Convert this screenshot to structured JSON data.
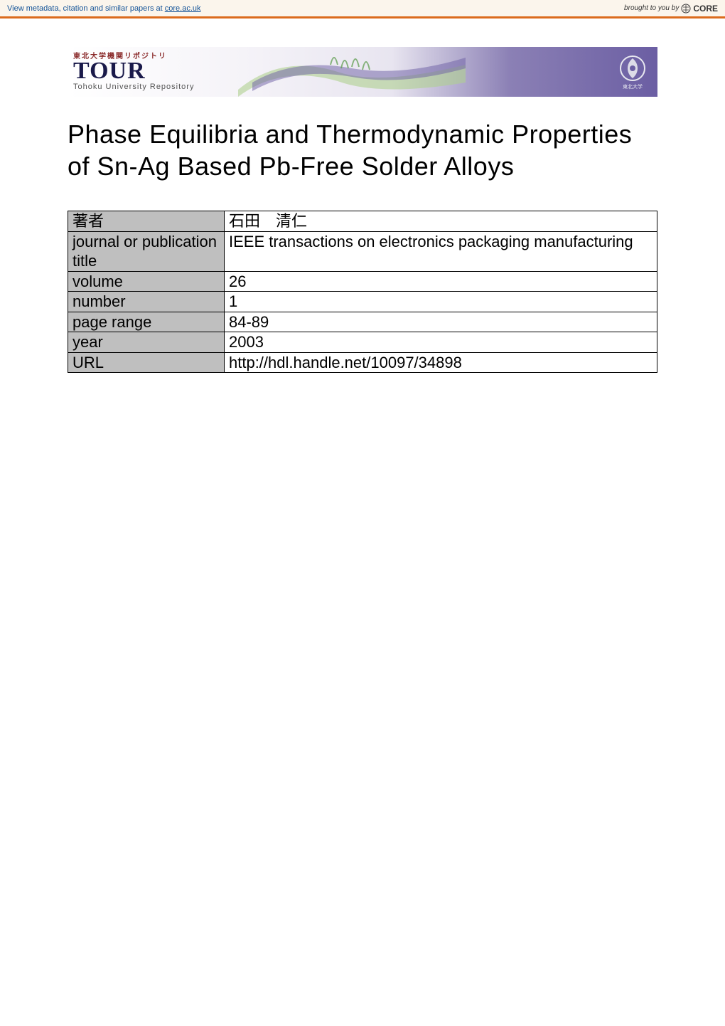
{
  "topbar": {
    "text_prefix": "View metadata, citation and similar papers at ",
    "link_text": "core.ac.uk",
    "brought": "brought to you by",
    "core": "CORE"
  },
  "banner": {
    "jp_super": "東北大学機関リポジトリ",
    "logo_text": "TOUR",
    "subtitle": "Tohoku University Repository",
    "crest_label": "東北大学",
    "colors": {
      "grad_start": "#ffffff",
      "grad_end": "#6b5ea3",
      "swoosh_green": "#afd08f",
      "swoosh_blue": "#6b5ea3"
    }
  },
  "title": "Phase Equilibria and Thermodynamic Properties of Sn-Ag Based Pb-Free Solder Alloys",
  "meta": [
    {
      "label": "著者",
      "value": "石田　清仁"
    },
    {
      "label": "journal or publication title",
      "value": "IEEE transactions on electronics packaging manufacturing"
    },
    {
      "label": "volume",
      "value": "26"
    },
    {
      "label": "number",
      "value": "1"
    },
    {
      "label": "page range",
      "value": "84-89"
    },
    {
      "label": "year",
      "value": "2003"
    },
    {
      "label": "URL",
      "value": "http://hdl.handle.net/10097/34898"
    }
  ]
}
